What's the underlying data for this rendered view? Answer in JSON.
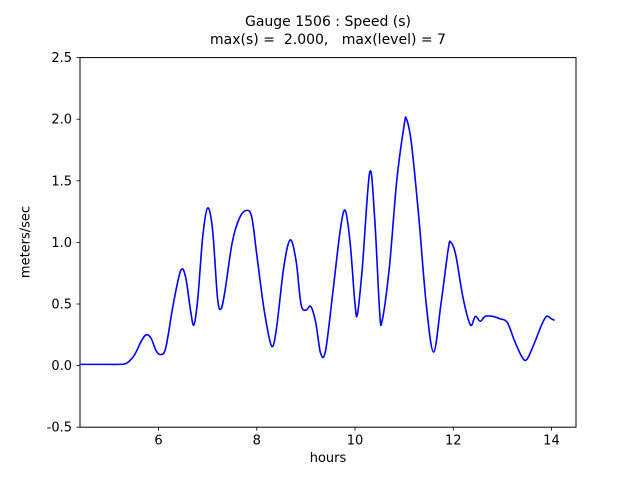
{
  "window": {
    "background": "#ffffff"
  },
  "chart_data": {
    "type": "line",
    "title": "Gauge 1506 : Speed (s)",
    "subtitle": "max(s) =  2.000,   max(level) = 7",
    "xlabel": "hours",
    "ylabel": "meters/sec",
    "xlim": [
      4.4,
      14.5
    ],
    "ylim": [
      -0.5,
      2.5
    ],
    "xticks": [
      6,
      8,
      10,
      12,
      14
    ],
    "xtick_labels": [
      "6",
      "8",
      "10",
      "12",
      "14"
    ],
    "yticks": [
      -0.5,
      0.0,
      0.5,
      1.0,
      1.5,
      2.0,
      2.5
    ],
    "ytick_labels": [
      "-0.5",
      "0.0",
      "0.5",
      "1.0",
      "1.5",
      "2.0",
      "2.5"
    ],
    "grid": false,
    "legend": "none",
    "line_color": "#0000ff",
    "axis_color": "#000000",
    "series": [
      {
        "name": "speed",
        "x": [
          4.4,
          4.6,
          4.8,
          5.0,
          5.2,
          5.35,
          5.5,
          5.65,
          5.75,
          5.85,
          5.95,
          6.05,
          6.15,
          6.3,
          6.45,
          6.55,
          6.65,
          6.72,
          6.8,
          6.9,
          7.0,
          7.1,
          7.2,
          7.27,
          7.35,
          7.5,
          7.65,
          7.8,
          7.9,
          8.0,
          8.15,
          8.3,
          8.4,
          8.55,
          8.68,
          8.8,
          8.9,
          9.0,
          9.1,
          9.2,
          9.3,
          9.4,
          9.55,
          9.7,
          9.8,
          9.9,
          10.0,
          10.05,
          10.15,
          10.3,
          10.4,
          10.5,
          10.55,
          10.7,
          10.85,
          11.0,
          11.05,
          11.15,
          11.3,
          11.45,
          11.6,
          11.75,
          11.9,
          11.95,
          12.05,
          12.2,
          12.35,
          12.45,
          12.55,
          12.65,
          12.8,
          12.95,
          13.1,
          13.25,
          13.4,
          13.5,
          13.65,
          13.8,
          13.9,
          14.0,
          14.05
        ],
        "y": [
          0.01,
          0.01,
          0.01,
          0.01,
          0.01,
          0.02,
          0.08,
          0.2,
          0.25,
          0.22,
          0.12,
          0.09,
          0.15,
          0.5,
          0.77,
          0.72,
          0.45,
          0.33,
          0.55,
          1.05,
          1.28,
          1.1,
          0.55,
          0.46,
          0.6,
          1.0,
          1.2,
          1.26,
          1.2,
          0.9,
          0.45,
          0.16,
          0.3,
          0.8,
          1.02,
          0.85,
          0.5,
          0.45,
          0.48,
          0.35,
          0.1,
          0.12,
          0.6,
          1.1,
          1.26,
          1.0,
          0.5,
          0.42,
          0.8,
          1.57,
          1.2,
          0.45,
          0.36,
          0.8,
          1.5,
          1.95,
          2.0,
          1.8,
          1.2,
          0.5,
          0.11,
          0.5,
          0.95,
          1.0,
          0.9,
          0.55,
          0.33,
          0.4,
          0.36,
          0.4,
          0.4,
          0.38,
          0.35,
          0.2,
          0.07,
          0.05,
          0.18,
          0.33,
          0.4,
          0.38,
          0.37
        ]
      }
    ]
  }
}
